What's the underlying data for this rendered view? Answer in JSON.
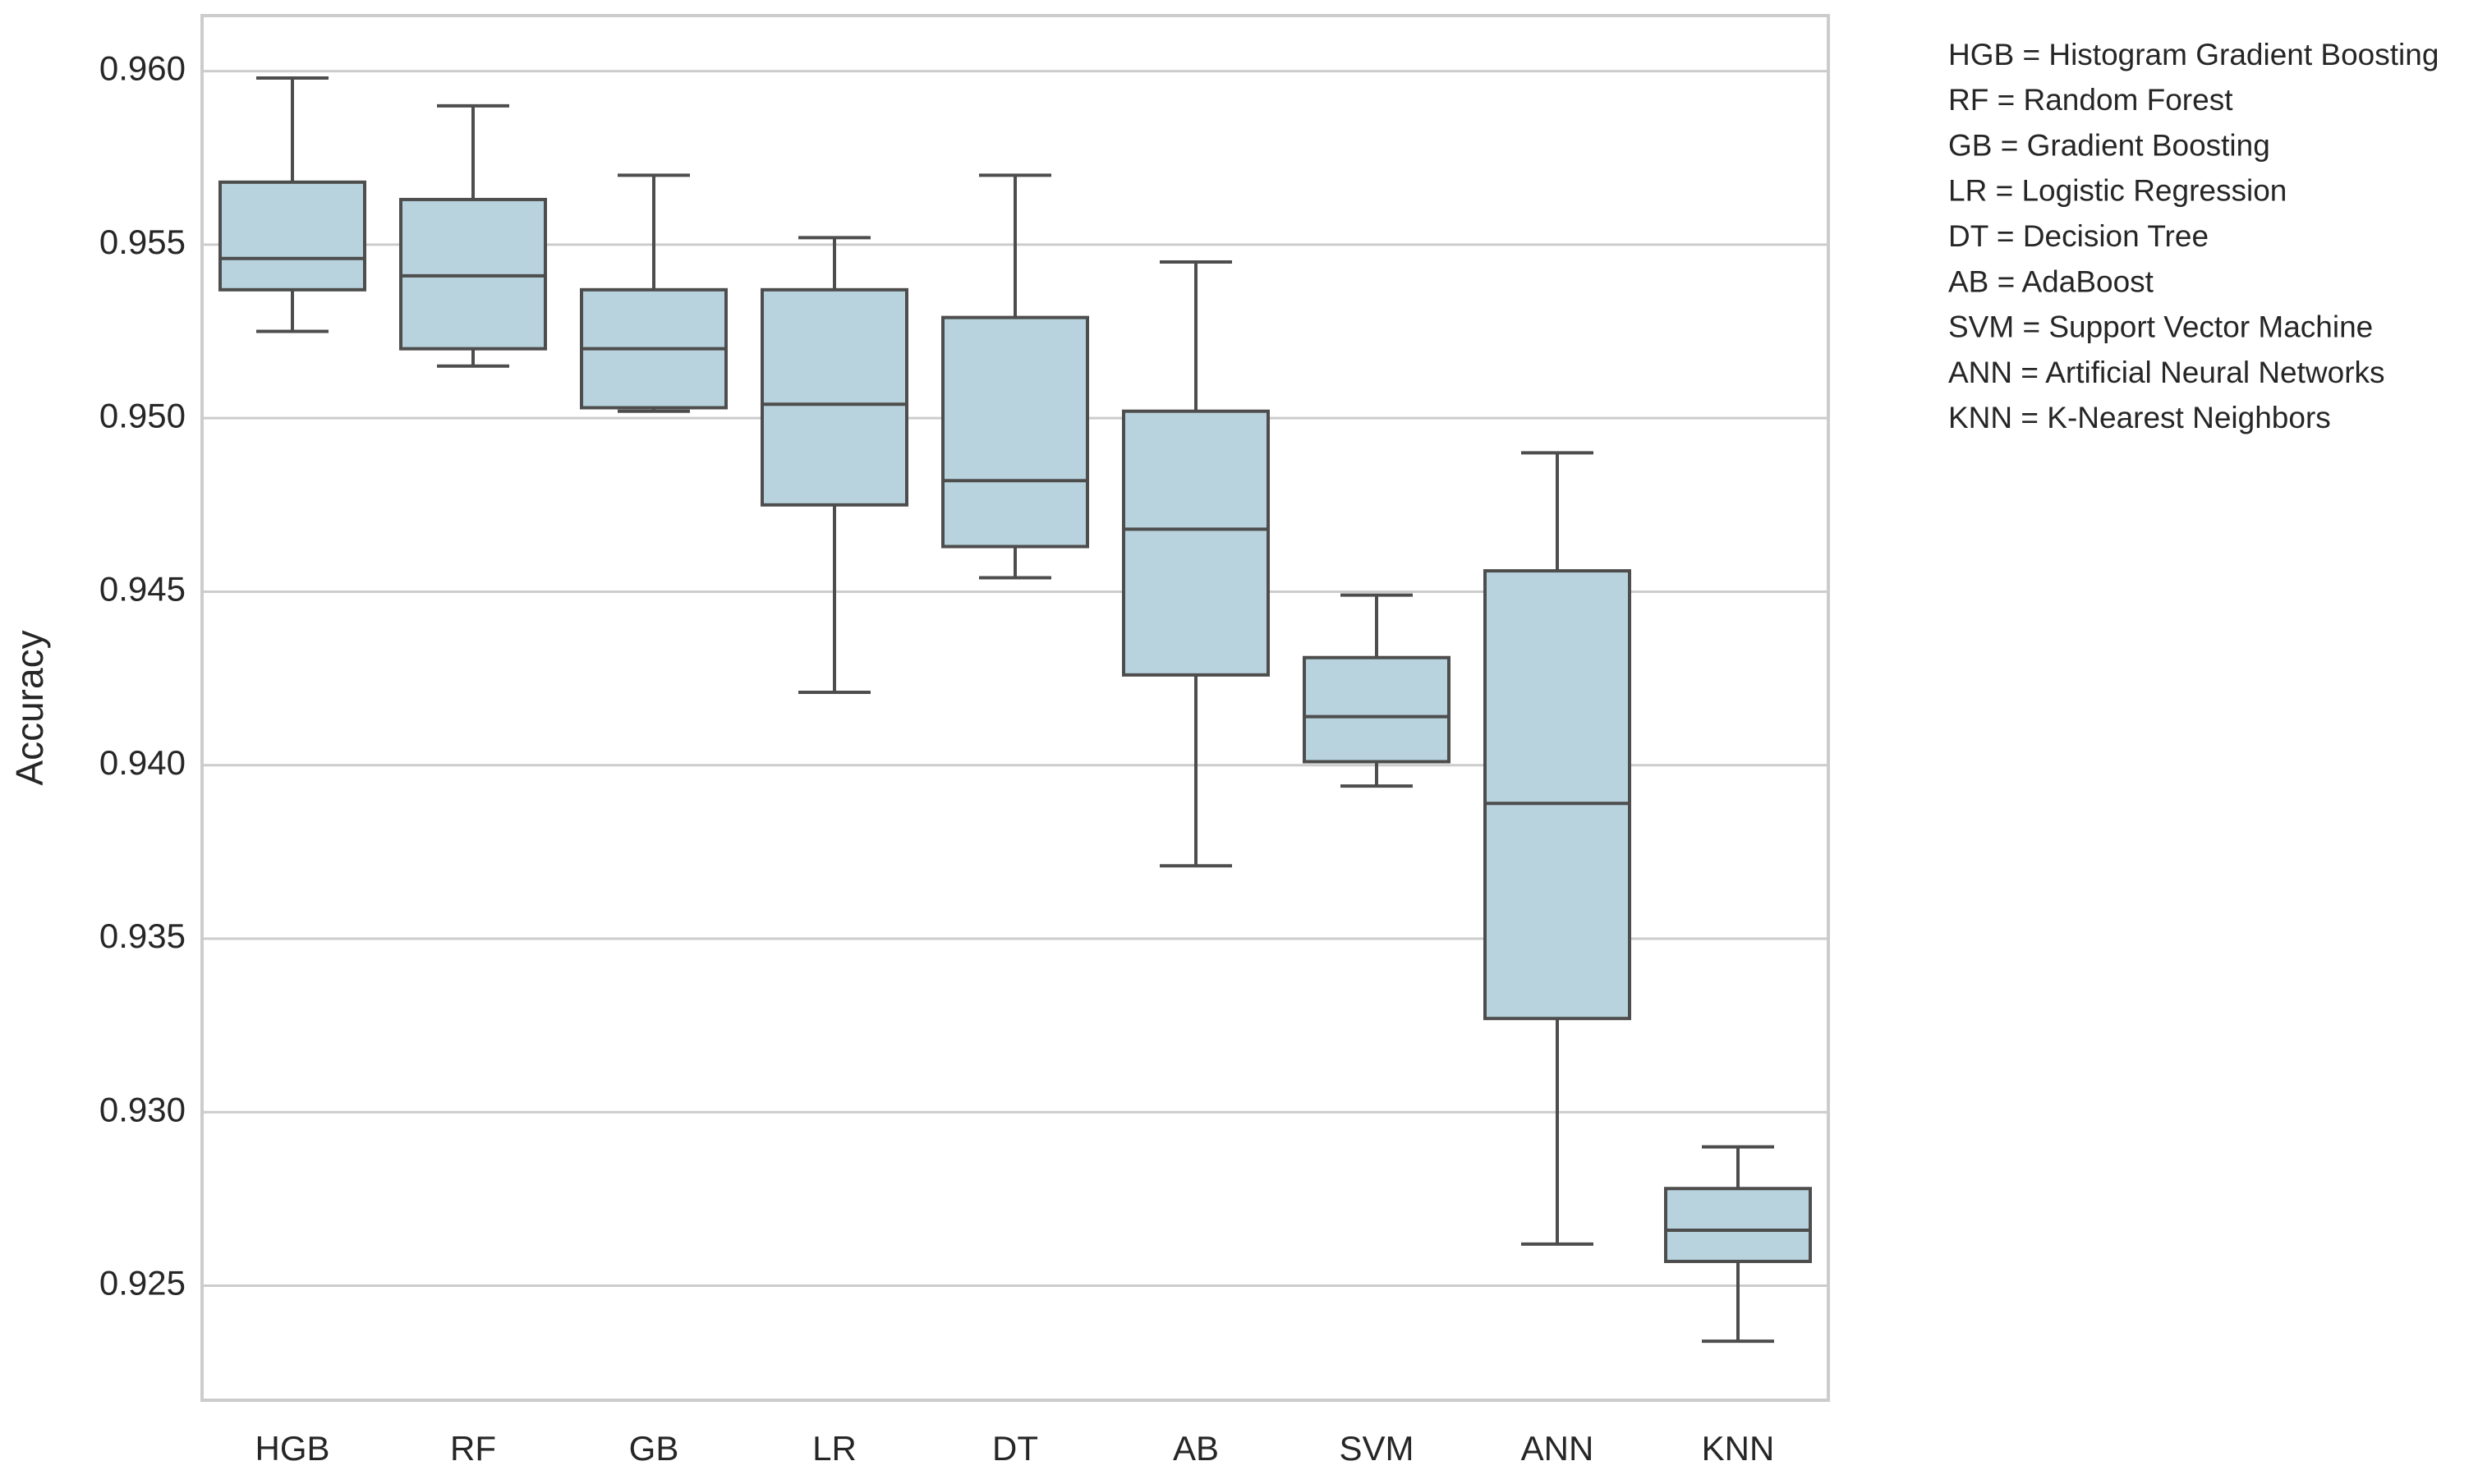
{
  "chart_data": {
    "type": "box",
    "y_label": "Accuracy",
    "categories": [
      "HGB",
      "RF",
      "GB",
      "LR",
      "DT",
      "AB",
      "SVM",
      "ANN",
      "KNN"
    ],
    "min": [
      0.9525,
      0.9515,
      0.9502,
      0.9421,
      0.9454,
      0.9371,
      0.9394,
      0.9262,
      0.9234
    ],
    "q1": [
      0.9537,
      0.952,
      0.9503,
      0.9475,
      0.9463,
      0.9426,
      0.9401,
      0.9327,
      0.9257
    ],
    "median": [
      0.9546,
      0.9541,
      0.952,
      0.9504,
      0.9482,
      0.9468,
      0.9414,
      0.9389,
      0.9266
    ],
    "q3": [
      0.9568,
      0.9563,
      0.9537,
      0.9537,
      0.9529,
      0.9502,
      0.9431,
      0.9456,
      0.9278
    ],
    "max": [
      0.9598,
      0.959,
      0.957,
      0.9552,
      0.957,
      0.9545,
      0.9449,
      0.949,
      0.929
    ],
    "color": "#b8d3dd",
    "line_color": "#4d4d4d",
    "ylim": [
      0.9217,
      0.9616
    ],
    "yticks": [
      {
        "value": 0.925,
        "label": "0.925"
      },
      {
        "value": 0.93,
        "label": "0.930"
      },
      {
        "value": 0.935,
        "label": "0.935"
      },
      {
        "value": 0.94,
        "label": "0.940"
      },
      {
        "value": 0.945,
        "label": "0.945"
      },
      {
        "value": 0.95,
        "label": "0.950"
      },
      {
        "value": 0.955,
        "label": "0.955"
      },
      {
        "value": 0.96,
        "label": "0.960"
      }
    ],
    "grid": true,
    "notes": [
      "HGB = Histogram Gradient Boosting",
      "RF = Random Forest",
      "GB = Gradient Boosting",
      "LR = Logistic Regression",
      "DT = Decision Tree",
      "AB = AdaBoost",
      "SVM = Support Vector Machine",
      "ANN = Artificial Neural Networks",
      "KNN = K-Nearest Neighbors"
    ]
  }
}
